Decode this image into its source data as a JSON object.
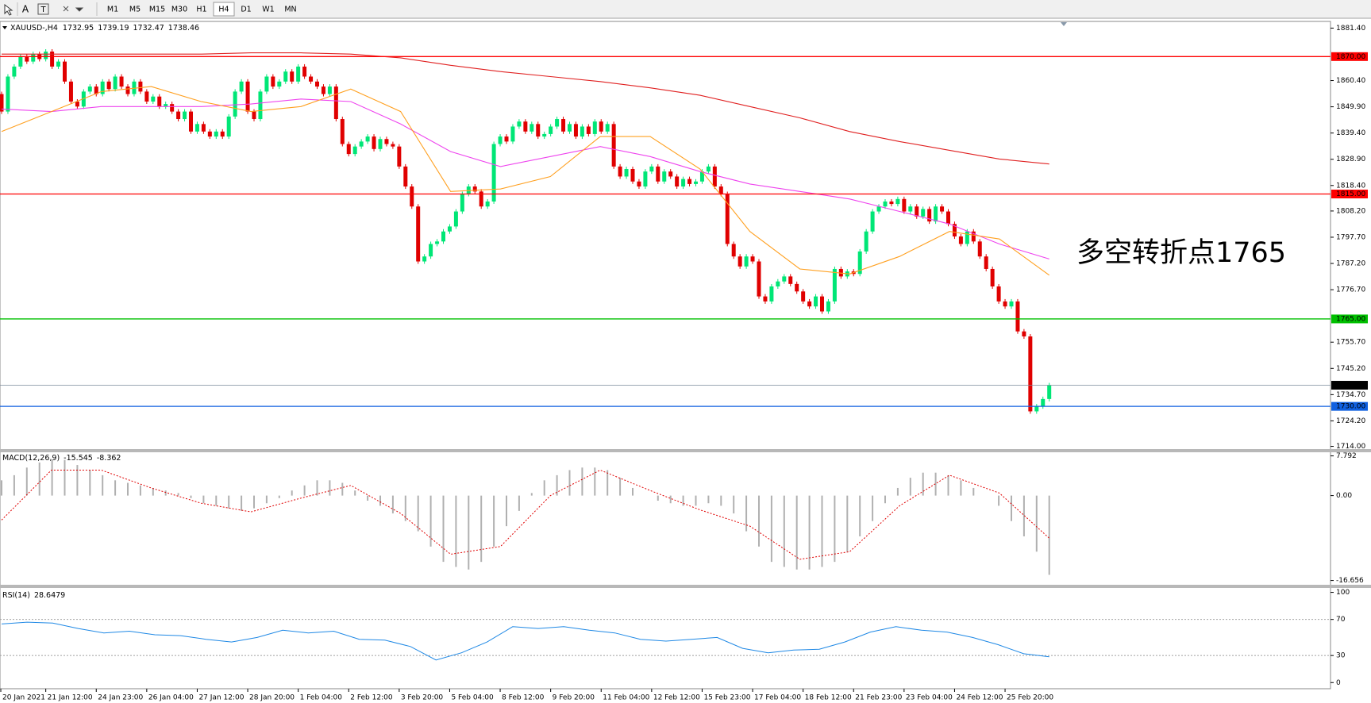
{
  "toolbar": {
    "tools": [
      "A",
      "T"
    ],
    "timeframes": [
      "M1",
      "M5",
      "M15",
      "M30",
      "H1",
      "H4",
      "D1",
      "W1",
      "MN"
    ]
  },
  "price_chart": {
    "type": "candlestick",
    "symbol": "XAUUSD-,H4",
    "high": 1739.19,
    "low": 1732.47,
    "closes": [
      1855,
      1848,
      1862,
      1866,
      1870,
      1868,
      1871,
      1869,
      1872,
      1866,
      1868,
      1860,
      1852,
      1850,
      1856,
      1858,
      1855,
      1860,
      1857,
      1862,
      1858,
      1855,
      1860,
      1856,
      1852,
      1854,
      1850,
      1851,
      1848,
      1845,
      1848,
      1840,
      1843,
      1840,
      1838,
      1840,
      1838,
      1846,
      1856,
      1860,
      1848,
      1845,
      1856,
      1862,
      1858,
      1860,
      1864,
      1860,
      1866,
      1862,
      1860,
      1858,
      1855,
      1858,
      1845,
      1835,
      1831,
      1834,
      1836,
      1838,
      1833,
      1837,
      1835,
      1834,
      1826,
      1818,
      1810,
      1788,
      1790,
      1795,
      1796,
      1800,
      1802,
      1808,
      1815,
      1818,
      1816,
      1810,
      1812,
      1835,
      1838,
      1836,
      1842,
      1844,
      1840,
      1843,
      1838,
      1839,
      1842,
      1845,
      1840,
      1843,
      1838,
      1842,
      1839,
      1844,
      1840,
      1843,
      1826,
      1822,
      1825,
      1820,
      1818,
      1824,
      1826,
      1820,
      1824,
      1822,
      1818,
      1821,
      1819,
      1820,
      1824,
      1826,
      1818,
      1815,
      1795,
      1790,
      1786,
      1790,
      1788,
      1774,
      1772,
      1778,
      1780,
      1782,
      1779,
      1776,
      1772,
      1770,
      1774,
      1768,
      1772,
      1785,
      1782,
      1784,
      1783,
      1792,
      1800,
      1808,
      1810,
      1812,
      1811,
      1813,
      1808,
      1810,
      1806,
      1809,
      1804,
      1810,
      1808,
      1803,
      1798,
      1795,
      1800,
      1796,
      1790,
      1785,
      1778,
      1772,
      1770,
      1772,
      1760,
      1758,
      1728,
      1730,
      1732.95,
      1738.46
    ],
    "bull_color": "#00e676",
    "bear_color": "#e00000",
    "moving_averages": [
      {
        "color": "#e02020",
        "values": [
          1871,
          1871,
          1871,
          1871,
          1871,
          1871.5,
          1871.5,
          1871,
          1869.5,
          1866.5,
          1864,
          1862,
          1860,
          1857.5,
          1854.5,
          1850,
          1845.5,
          1840,
          1836,
          1832.5,
          1829,
          1827
        ]
      },
      {
        "color": "#ee44ee",
        "values": [
          1849,
          1848,
          1850,
          1850,
          1850,
          1851,
          1853,
          1852,
          1843,
          1832,
          1826,
          1830,
          1834,
          1830,
          1824,
          1819,
          1816,
          1813,
          1808,
          1803,
          1795,
          1789
        ]
      },
      {
        "color": "#ffa020",
        "values": [
          1840,
          1848,
          1856,
          1858,
          1852,
          1848,
          1850,
          1857,
          1848,
          1816,
          1817,
          1822,
          1838,
          1838,
          1825,
          1800,
          1785,
          1783,
          1790,
          1800,
          1797,
          1782.5
        ]
      }
    ],
    "ylim": [
      1712.9,
      1882.8
    ],
    "yticks": [
      {
        "value": 1881.4,
        "label": "1881.40"
      },
      {
        "value": 1860.4,
        "label": "1860.40"
      },
      {
        "value": 1849.9,
        "label": "1849.90"
      },
      {
        "value": 1839.4,
        "label": "1839.40"
      },
      {
        "value": 1828.9,
        "label": "1828.90"
      },
      {
        "value": 1818.4,
        "label": "1818.40"
      },
      {
        "value": 1808.2,
        "label": "1808.20"
      },
      {
        "value": 1797.7,
        "label": "1797.70"
      },
      {
        "value": 1787.2,
        "label": "1787.20"
      },
      {
        "value": 1776.7,
        "label": "1776.70"
      },
      {
        "value": 1755.7,
        "label": "1755.70"
      },
      {
        "value": 1745.2,
        "label": "1745.20"
      },
      {
        "value": 1734.7,
        "label": "1734.70"
      },
      {
        "value": 1724.2,
        "label": "1724.20"
      },
      {
        "value": 1714,
        "label": "1714.00"
      }
    ],
    "levels": [
      {
        "value": 1870,
        "label": "1870.00",
        "color": "#ff0000"
      },
      {
        "value": 1815,
        "label": "1815.00",
        "color": "#ff0000"
      },
      {
        "value": 1765,
        "label": "1765.00",
        "color": "#00c000"
      },
      {
        "value": 1730,
        "label": "1730.00",
        "color": "#1060e0"
      }
    ],
    "annotation": "多空转折点1765"
  },
  "macd": {
    "type": "histogram",
    "label": "MACD(12,26,9)",
    "histogram": [
      3,
      4,
      5.5,
      6.5,
      7,
      7,
      6,
      5,
      4,
      3,
      2.5,
      2,
      1.5,
      1,
      0.5,
      -0.5,
      -1.5,
      -2,
      -2.5,
      -3,
      -2.5,
      -1.5,
      -0.5,
      1,
      2,
      3,
      3,
      2.5,
      1,
      -1,
      -2,
      -3.5,
      -5,
      -7,
      -10,
      -13,
      -14,
      -14.5,
      -13,
      -10,
      -6,
      -3,
      0.5,
      3,
      4,
      5,
      5.5,
      5.5,
      5,
      3.5,
      1.5,
      0,
      -1,
      -1.5,
      -2,
      -2,
      -1.5,
      -2,
      -3.5,
      -7,
      -10,
      -13,
      -14,
      -14.5,
      -14.5,
      -14,
      -13,
      -11,
      -8,
      -5,
      -1.5,
      1.5,
      3.5,
      4.5,
      4.5,
      4,
      3,
      1.5,
      0,
      -2,
      -5,
      -8,
      -11,
      -15.545
    ],
    "signal": [
      -4.8,
      5,
      5,
      1.5,
      -1.5,
      -3.2,
      -0.5,
      2,
      -3.5,
      -11.5,
      -10,
      0,
      5,
      1,
      -2.8,
      -6,
      -12.5,
      -11,
      -2,
      4,
      0.5,
      -8.362
    ],
    "ylim": [
      -17.5,
      8.5
    ],
    "yticks": [
      7.792,
      {
        "value": 0,
        "label": "0.00"
      },
      -16.656
    ]
  },
  "rsi": {
    "type": "line",
    "label": "RSI(14)",
    "color": "#1e88e5",
    "values": [
      65,
      67,
      66,
      60,
      55,
      57,
      53,
      52,
      48,
      45,
      50,
      58,
      55,
      57,
      48,
      47,
      40,
      25,
      33,
      45,
      62,
      60,
      62,
      58,
      55,
      48,
      46,
      48,
      50,
      38,
      33,
      36,
      37,
      45,
      56,
      62,
      58,
      56,
      50,
      42,
      32,
      28.6479
    ],
    "ylim": [
      -6.8,
      104.9
    ],
    "yticks": [
      100,
      70,
      30,
      0
    ]
  },
  "time_labels": [
    "20 Jan 2021",
    "21 Jan 12:00",
    "24 Jan 23:00",
    "26 Jan 04:00",
    "27 Jan 12:00",
    "28 Jan 20:00",
    "1 Feb 04:00",
    "2 Feb 12:00",
    "3 Feb 20:00",
    "5 Feb 04:00",
    "8 Feb 12:00",
    "9 Feb 20:00",
    "11 Feb 04:00",
    "12 Feb 12:00",
    "15 Feb 23:00",
    "17 Feb 04:00",
    "18 Feb 12:00",
    "21 Feb 23:00",
    "23 Feb 04:00",
    "24 Feb 12:00",
    "25 Feb 20:00"
  ]
}
